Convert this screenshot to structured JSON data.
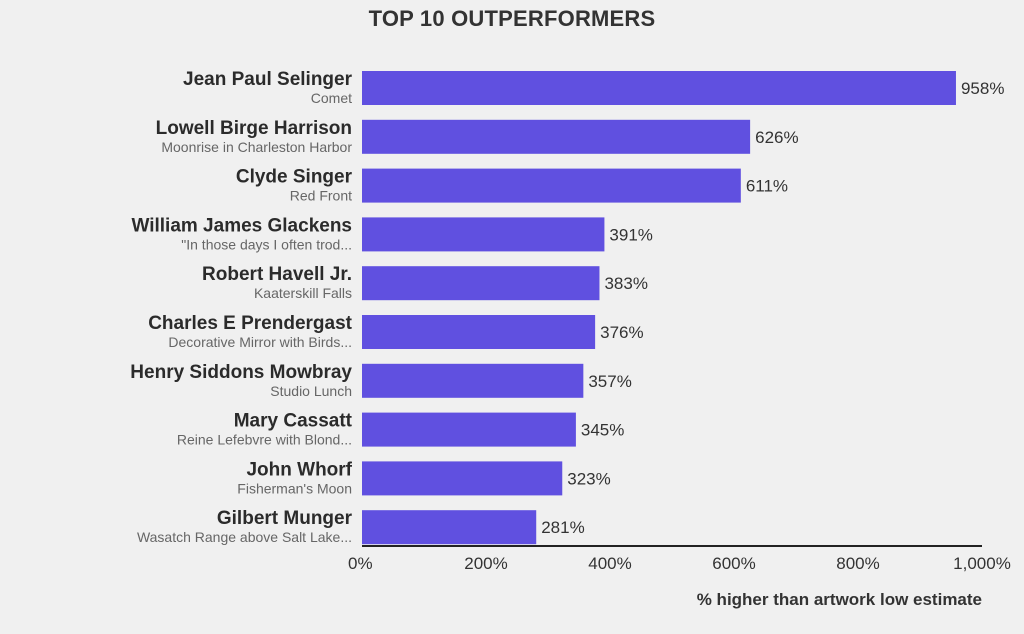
{
  "chart_data": {
    "type": "bar",
    "orientation": "horizontal",
    "title": "TOP 10 OUTPERFORMERS",
    "xlabel": "% higher than artwork low estimate",
    "ylabel": "",
    "xlim": [
      0,
      1000
    ],
    "xticks": [
      "0%",
      "200%",
      "400%",
      "600%",
      "800%",
      "1,000%"
    ],
    "grid": false,
    "bar_color": "#6050e0",
    "categories": [
      {
        "artist": "Jean Paul Selinger",
        "artwork": "Comet"
      },
      {
        "artist": "Lowell Birge Harrison",
        "artwork": "Moonrise in Charleston Harbor"
      },
      {
        "artist": "Clyde Singer",
        "artwork": "Red Front"
      },
      {
        "artist": "William James Glackens",
        "artwork": "\"In those days I often trod..."
      },
      {
        "artist": "Robert Havell Jr.",
        "artwork": "Kaaterskill Falls"
      },
      {
        "artist": "Charles E Prendergast",
        "artwork": "Decorative Mirror with Birds..."
      },
      {
        "artist": "Henry Siddons Mowbray",
        "artwork": "Studio Lunch"
      },
      {
        "artist": "Mary Cassatt",
        "artwork": "Reine Lefebvre with Blond..."
      },
      {
        "artist": "John Whorf",
        "artwork": "Fisherman's Moon"
      },
      {
        "artist": "Gilbert Munger",
        "artwork": "Wasatch Range above Salt Lake..."
      }
    ],
    "values": [
      958,
      626,
      611,
      391,
      383,
      376,
      357,
      345,
      323,
      281
    ],
    "value_labels": [
      "958%",
      "626%",
      "611%",
      "391%",
      "383%",
      "376%",
      "357%",
      "345%",
      "323%",
      "281%"
    ]
  }
}
